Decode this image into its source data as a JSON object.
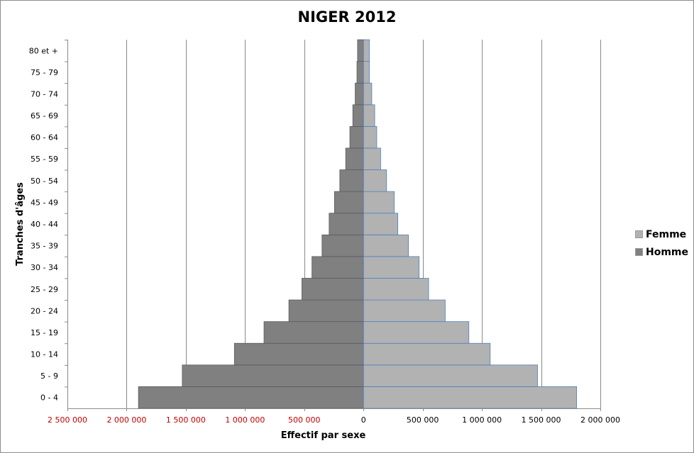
{
  "chart_data": {
    "type": "bar",
    "title": "NIGER 2012",
    "xlabel": "Effectif par sexe",
    "ylabel": "Tranches d'âges",
    "xlim": [
      -2500000,
      2000000
    ],
    "xticks": [
      {
        "value": -2500000,
        "label": "2 500 000"
      },
      {
        "value": -2000000,
        "label": "2 000 000"
      },
      {
        "value": -1500000,
        "label": "1 500 000"
      },
      {
        "value": -1000000,
        "label": "1 000 000"
      },
      {
        "value": -500000,
        "label": "500 000"
      },
      {
        "value": 0,
        "label": "0"
      },
      {
        "value": 500000,
        "label": "500 000"
      },
      {
        "value": 1000000,
        "label": "1 000 000"
      },
      {
        "value": 1500000,
        "label": "1 500 000"
      },
      {
        "value": 2000000,
        "label": "2 000 000"
      }
    ],
    "categories": [
      "0 - 4",
      "5 - 9",
      "10 - 14",
      "15 - 19",
      "20 - 24",
      "25 - 29",
      "30 - 34",
      "35 - 39",
      "40 - 44",
      "45 - 49",
      "50 - 54",
      "55 - 59",
      "60 - 64",
      "65 - 69",
      "70 - 74",
      "75 - 79",
      "80 et +"
    ],
    "series": [
      {
        "name": "Femme",
        "color": "#b2b2b2",
        "side": "right",
        "values": [
          1800000,
          1470000,
          1070000,
          890000,
          690000,
          550000,
          470000,
          380000,
          290000,
          260000,
          195000,
          145000,
          112000,
          95000,
          70000,
          50000,
          50000
        ]
      },
      {
        "name": "Homme",
        "color": "#808080",
        "side": "left",
        "values": [
          1900000,
          1530000,
          1090000,
          840000,
          630000,
          520000,
          435000,
          350000,
          290000,
          245000,
          200000,
          150000,
          115000,
          90000,
          70000,
          55000,
          50000
        ]
      }
    ],
    "grid": true,
    "legend_position": "right",
    "negative_tick_color": "#c00000"
  }
}
